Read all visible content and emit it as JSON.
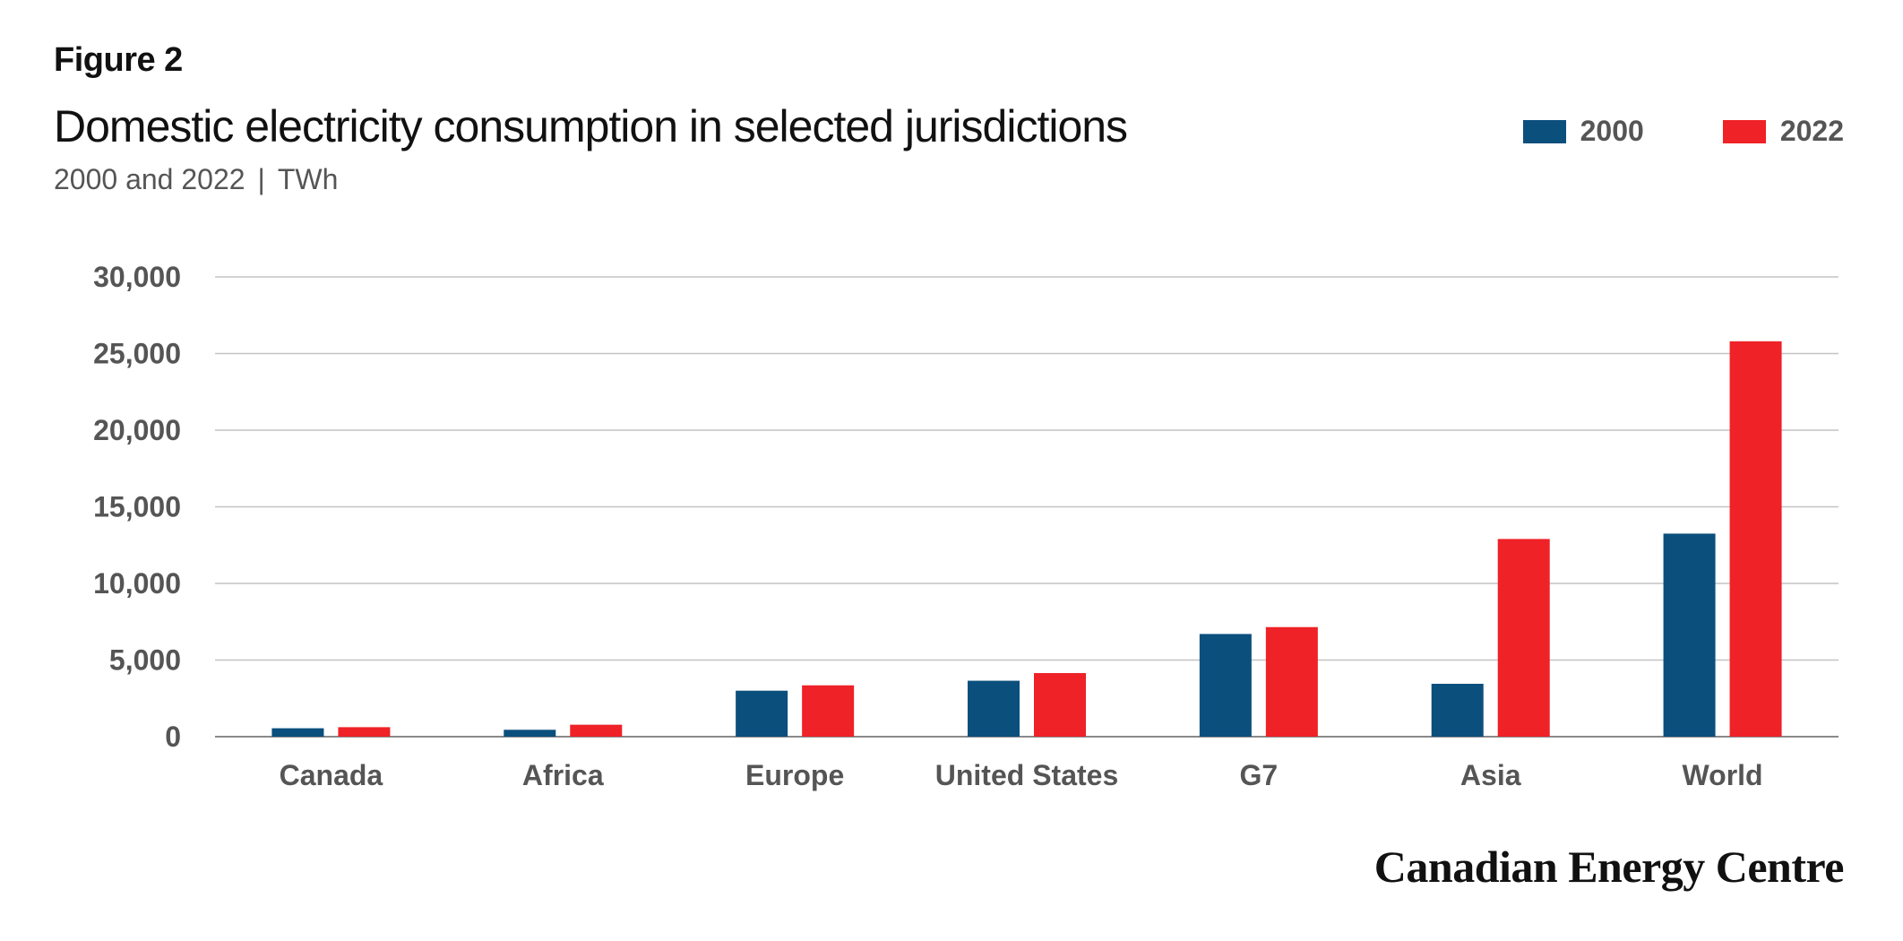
{
  "figure_label": "Figure 2",
  "title": "Domestic electricity consumption in selected jurisdictions",
  "subtitle": {
    "years": "2000 and 2022",
    "separator": "|",
    "unit": "TWh"
  },
  "brand": "Canadian Energy Centre",
  "chart_data": {
    "type": "bar",
    "categories": [
      "Canada",
      "Africa",
      "Europe",
      "United States",
      "G7",
      "Asia",
      "World"
    ],
    "series": [
      {
        "name": "2000",
        "color": "#0b4f7d",
        "values": [
          550,
          450,
          3000,
          3650,
          6700,
          3450,
          13250
        ]
      },
      {
        "name": "2022",
        "color": "#ee2227",
        "values": [
          620,
          780,
          3350,
          4150,
          7150,
          12900,
          25800
        ]
      }
    ],
    "ylim": [
      0,
      30000
    ],
    "yticks": [
      0,
      5000,
      10000,
      15000,
      20000,
      25000,
      30000
    ],
    "ytick_labels": [
      "0",
      "5,000",
      "10,000",
      "15,000",
      "20,000",
      "25,000",
      "30,000"
    ],
    "xlabel": "",
    "ylabel": "",
    "grid": true,
    "legend_position": "top-right"
  }
}
